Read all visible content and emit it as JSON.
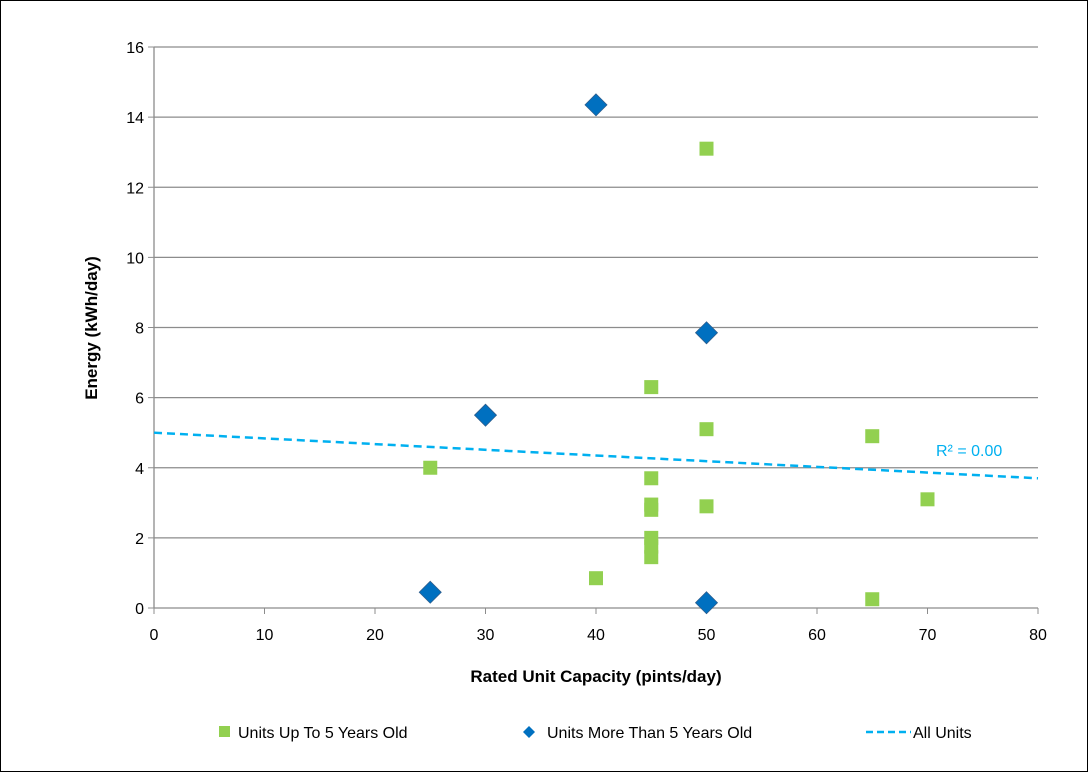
{
  "chart_data": {
    "type": "scatter",
    "title": "",
    "xlabel": "Rated Unit Capacity (pints/day)",
    "ylabel": "Energy (kWh/day)",
    "xlim": [
      0,
      80
    ],
    "ylim": [
      0,
      16
    ],
    "x_ticks": [
      0,
      10,
      20,
      30,
      40,
      50,
      60,
      70,
      80
    ],
    "y_ticks": [
      0,
      2,
      4,
      6,
      8,
      10,
      12,
      14,
      16
    ],
    "grid": "horizontal",
    "legend_position": "bottom",
    "series": [
      {
        "name": "Units Up To 5 Years Old",
        "marker": "square",
        "color": "#92d050",
        "points": [
          {
            "x": 25,
            "y": 4.0
          },
          {
            "x": 40,
            "y": 0.85
          },
          {
            "x": 45,
            "y": 6.3
          },
          {
            "x": 45,
            "y": 3.7
          },
          {
            "x": 45,
            "y": 2.95
          },
          {
            "x": 45,
            "y": 2.8
          },
          {
            "x": 45,
            "y": 2.0
          },
          {
            "x": 45,
            "y": 1.75
          },
          {
            "x": 45,
            "y": 1.45
          },
          {
            "x": 50,
            "y": 13.1
          },
          {
            "x": 50,
            "y": 5.1
          },
          {
            "x": 50,
            "y": 2.9
          },
          {
            "x": 65,
            "y": 4.9
          },
          {
            "x": 65,
            "y": 0.25
          },
          {
            "x": 70,
            "y": 3.1
          }
        ]
      },
      {
        "name": "Units More Than 5 Years Old",
        "marker": "diamond",
        "color": "#0070c0",
        "points": [
          {
            "x": 25,
            "y": 0.45
          },
          {
            "x": 30,
            "y": 5.5
          },
          {
            "x": 40,
            "y": 14.35
          },
          {
            "x": 50,
            "y": 7.85
          },
          {
            "x": 50,
            "y": 0.15
          }
        ]
      },
      {
        "name": "All Units",
        "type": "trendline",
        "style": "dashed",
        "color": "#00b0f0",
        "line": [
          {
            "x": 0,
            "y": 5.0
          },
          {
            "x": 80,
            "y": 3.7
          }
        ]
      }
    ],
    "annotation": {
      "text": "R² = 0.00",
      "color": "#00b0f0"
    }
  }
}
